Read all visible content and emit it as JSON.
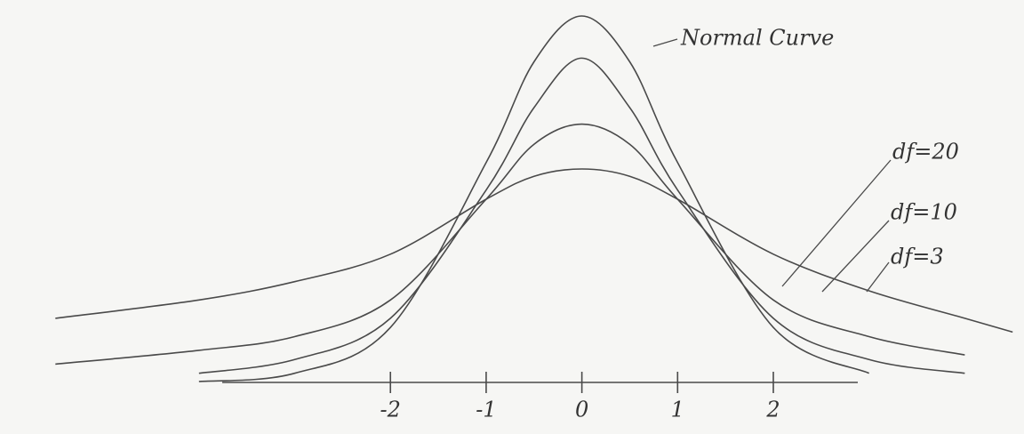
{
  "chart_data": {
    "type": "line",
    "x": [
      -5.5,
      -4,
      -3,
      -2,
      -1,
      -0.5,
      0,
      0.5,
      1,
      2,
      3,
      4,
      4.5
    ],
    "xlim": [
      -5.8,
      4.6
    ],
    "ylim": [
      0,
      0.4
    ],
    "xticks": [
      -2,
      -1,
      0,
      1,
      2
    ],
    "series": [
      {
        "name": "Normal Curve",
        "color": "#4a4a4a",
        "values": [
          null,
          0.001,
          0.01,
          0.06,
          0.24,
          0.35,
          0.4,
          0.35,
          0.24,
          0.06,
          0.01,
          null,
          null
        ]
      },
      {
        "name": "df=20",
        "color": "#4a4a4a",
        "values": [
          null,
          0.01,
          0.025,
          0.07,
          0.21,
          0.3,
          0.354,
          0.3,
          0.21,
          0.07,
          0.025,
          0.01,
          null
        ]
      },
      {
        "name": "df=10",
        "color": "#4a4a4a",
        "values": [
          0.02,
          0.035,
          0.05,
          0.09,
          0.2,
          0.26,
          0.282,
          0.26,
          0.2,
          0.09,
          0.05,
          0.03,
          null
        ]
      },
      {
        "name": "df=3",
        "color": "#4a4a4a",
        "values": [
          0.07,
          0.09,
          0.11,
          0.14,
          0.2,
          0.225,
          0.233,
          0.225,
          0.2,
          0.14,
          0.1,
          0.07,
          0.055
        ]
      }
    ]
  }
}
